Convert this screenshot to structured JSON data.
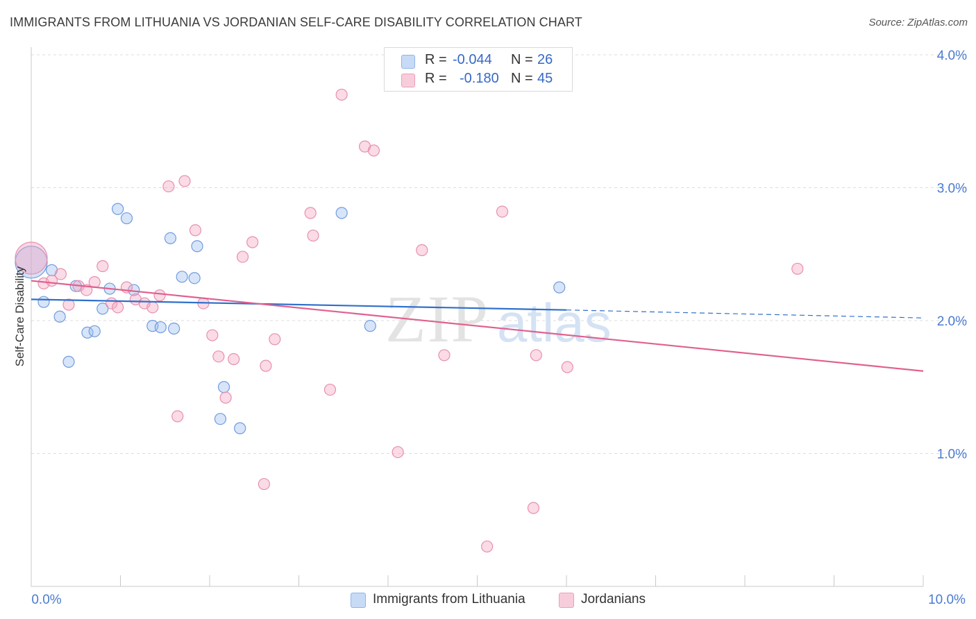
{
  "header": {
    "title": "IMMIGRANTS FROM LITHUANIA VS JORDANIAN SELF-CARE DISABILITY CORRELATION CHART",
    "source": "Source: ZipAtlas.com"
  },
  "watermark": {
    "zip": "ZIP",
    "atlas": "atlas"
  },
  "stats": {
    "rows": [
      {
        "r_label": "R =",
        "r_value": "-0.044",
        "n_label": "N =",
        "n_value": "26",
        "color": "#9dbfee"
      },
      {
        "r_label": "R =",
        "r_value": "-0.180",
        "n_label": "N =",
        "n_value": "45",
        "color": "#f2a6c0"
      }
    ]
  },
  "legend": {
    "items": [
      {
        "label": "Immigrants from Lithuania",
        "color": "#9dbfee"
      },
      {
        "label": "Jordanians",
        "color": "#f2a6c0"
      }
    ]
  },
  "chart_data": {
    "type": "scatter",
    "title": "IMMIGRANTS FROM LITHUANIA VS JORDANIAN SELF-CARE DISABILITY CORRELATION CHART",
    "xlabel": "",
    "ylabel": "Self-Care Disability",
    "xlim": [
      0,
      10
    ],
    "ylim": [
      0,
      4
    ],
    "x_tick_labels": [
      {
        "value": 0,
        "label": "0.0%"
      },
      {
        "value": 10,
        "label": "10.0%"
      }
    ],
    "y_tick_labels": [
      {
        "value": 1,
        "label": "1.0%"
      },
      {
        "value": 2,
        "label": "2.0%"
      },
      {
        "value": 3,
        "label": "3.0%"
      },
      {
        "value": 4,
        "label": "4.0%"
      }
    ],
    "grid": "horizontal dashed",
    "series": [
      {
        "name": "Immigrants from Lithuania",
        "color": "#9dbfee",
        "stroke": "#6f9be0",
        "line_color": "#2f6fcc",
        "trend": {
          "x0": 0,
          "y0": 2.16,
          "x1": 6.0,
          "y1": 2.08,
          "dash_to_x": 10.0,
          "dash_to_y": 2.02
        },
        "points": [
          {
            "x": 0.0,
            "y": 2.44,
            "big": true
          },
          {
            "x": 0.14,
            "y": 2.14
          },
          {
            "x": 0.23,
            "y": 2.38
          },
          {
            "x": 0.32,
            "y": 2.03
          },
          {
            "x": 0.42,
            "y": 1.69
          },
          {
            "x": 0.5,
            "y": 2.26
          },
          {
            "x": 0.63,
            "y": 1.91
          },
          {
            "x": 0.71,
            "y": 1.92
          },
          {
            "x": 0.8,
            "y": 2.09
          },
          {
            "x": 0.88,
            "y": 2.24
          },
          {
            "x": 0.97,
            "y": 2.84
          },
          {
            "x": 1.07,
            "y": 2.77
          },
          {
            "x": 1.15,
            "y": 2.23
          },
          {
            "x": 1.36,
            "y": 1.96
          },
          {
            "x": 1.45,
            "y": 1.95
          },
          {
            "x": 1.56,
            "y": 2.62
          },
          {
            "x": 1.6,
            "y": 1.94
          },
          {
            "x": 1.69,
            "y": 2.33
          },
          {
            "x": 1.83,
            "y": 2.32
          },
          {
            "x": 1.86,
            "y": 2.56
          },
          {
            "x": 2.12,
            "y": 1.26
          },
          {
            "x": 2.16,
            "y": 1.5
          },
          {
            "x": 2.34,
            "y": 1.19
          },
          {
            "x": 3.48,
            "y": 2.81
          },
          {
            "x": 3.8,
            "y": 1.96
          },
          {
            "x": 5.92,
            "y": 2.25
          }
        ]
      },
      {
        "name": "Jordanians",
        "color": "#f2a6c0",
        "stroke": "#e88fae",
        "line_color": "#e0608e",
        "trend": {
          "x0": 0,
          "y0": 2.3,
          "x1": 10.0,
          "y1": 1.62
        },
        "points": [
          {
            "x": 0.0,
            "y": 2.47,
            "big": true
          },
          {
            "x": 0.14,
            "y": 2.28
          },
          {
            "x": 0.23,
            "y": 2.3
          },
          {
            "x": 0.33,
            "y": 2.35
          },
          {
            "x": 0.42,
            "y": 2.12
          },
          {
            "x": 0.53,
            "y": 2.26
          },
          {
            "x": 0.62,
            "y": 2.23
          },
          {
            "x": 0.71,
            "y": 2.29
          },
          {
            "x": 0.8,
            "y": 2.41
          },
          {
            "x": 0.9,
            "y": 2.13
          },
          {
            "x": 0.97,
            "y": 2.1
          },
          {
            "x": 1.07,
            "y": 2.25
          },
          {
            "x": 1.17,
            "y": 2.16
          },
          {
            "x": 1.27,
            "y": 2.13
          },
          {
            "x": 1.36,
            "y": 2.1
          },
          {
            "x": 1.44,
            "y": 2.19
          },
          {
            "x": 1.54,
            "y": 3.01
          },
          {
            "x": 1.64,
            "y": 1.28
          },
          {
            "x": 1.72,
            "y": 3.05
          },
          {
            "x": 1.84,
            "y": 2.68
          },
          {
            "x": 1.93,
            "y": 2.13
          },
          {
            "x": 2.03,
            "y": 1.89
          },
          {
            "x": 2.1,
            "y": 1.73
          },
          {
            "x": 2.18,
            "y": 1.42
          },
          {
            "x": 2.27,
            "y": 1.71
          },
          {
            "x": 2.37,
            "y": 2.48
          },
          {
            "x": 2.48,
            "y": 2.59
          },
          {
            "x": 2.61,
            "y": 0.77
          },
          {
            "x": 2.63,
            "y": 1.66
          },
          {
            "x": 2.73,
            "y": 1.86
          },
          {
            "x": 3.13,
            "y": 2.81
          },
          {
            "x": 3.16,
            "y": 2.64
          },
          {
            "x": 3.35,
            "y": 1.48
          },
          {
            "x": 3.48,
            "y": 3.7
          },
          {
            "x": 3.74,
            "y": 3.31
          },
          {
            "x": 3.84,
            "y": 3.28
          },
          {
            "x": 4.11,
            "y": 1.01
          },
          {
            "x": 4.38,
            "y": 2.53
          },
          {
            "x": 4.63,
            "y": 1.74
          },
          {
            "x": 5.11,
            "y": 0.3
          },
          {
            "x": 5.28,
            "y": 2.82
          },
          {
            "x": 5.63,
            "y": 0.59
          },
          {
            "x": 5.66,
            "y": 1.74
          },
          {
            "x": 6.01,
            "y": 1.65
          },
          {
            "x": 8.59,
            "y": 2.39
          }
        ]
      }
    ]
  }
}
